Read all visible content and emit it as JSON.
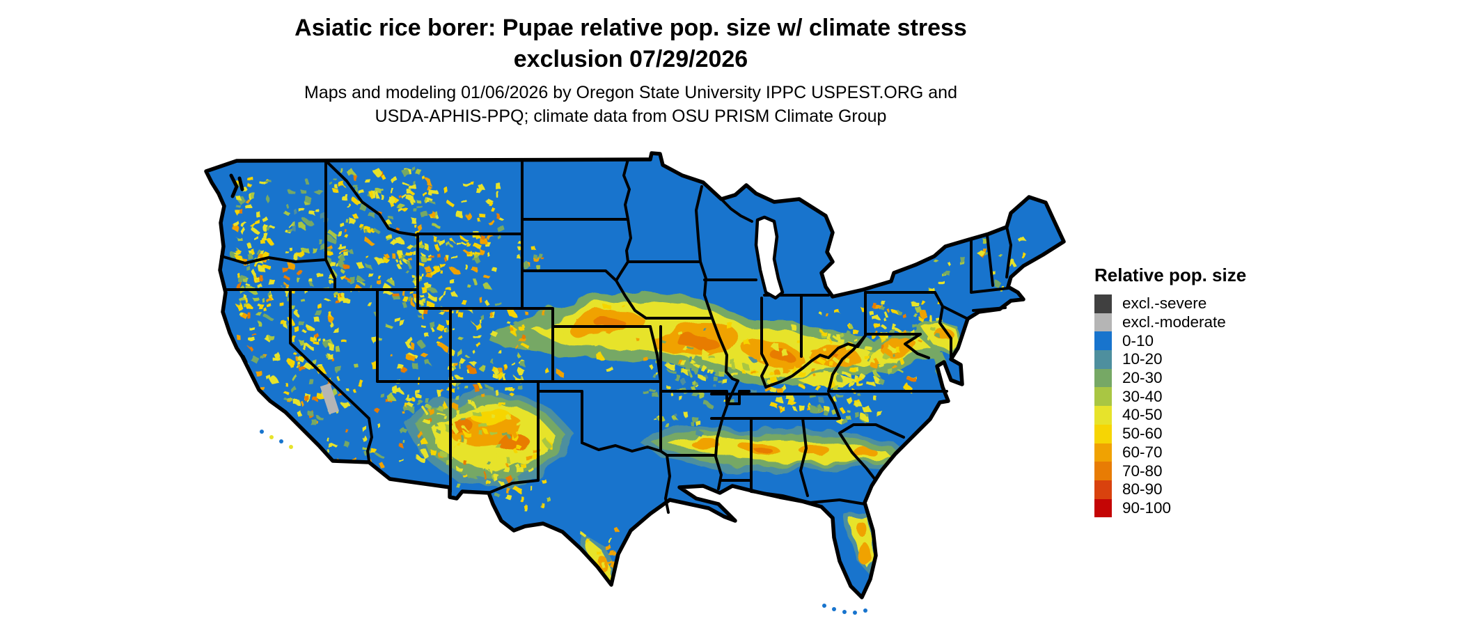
{
  "figure": {
    "title_line1": "Asiatic rice borer: Pupae relative pop. size w/ climate stress",
    "title_line2": "exclusion 07/29/2026",
    "subtitle_line1": "Maps and modeling 01/06/2026 by Oregon State University IPPC USPEST.ORG and",
    "subtitle_line2": "USDA-APHIS-PPQ; climate data from OSU PRISM Climate Group"
  },
  "legend": {
    "title": "Relative pop. size",
    "entries": [
      {
        "label": "excl.-severe",
        "color": "#404040"
      },
      {
        "label": "excl.-moderate",
        "color": "#b5b5b5"
      },
      {
        "label": "0-10",
        "color": "#1874cd"
      },
      {
        "label": "10-20",
        "color": "#4e8f9e"
      },
      {
        "label": "20-30",
        "color": "#76a865"
      },
      {
        "label": "30-40",
        "color": "#a9c643"
      },
      {
        "label": "40-50",
        "color": "#e7e32b"
      },
      {
        "label": "50-60",
        "color": "#f6d504"
      },
      {
        "label": "60-70",
        "color": "#f0a202"
      },
      {
        "label": "70-80",
        "color": "#e87c04"
      },
      {
        "label": "80-90",
        "color": "#d9420e"
      },
      {
        "label": "90-100",
        "color": "#c40505"
      }
    ]
  },
  "map": {
    "region": "Contiguous United States",
    "base_category": "0-10",
    "state_border_color": "#000000",
    "background_color": "#ffffff"
  }
}
